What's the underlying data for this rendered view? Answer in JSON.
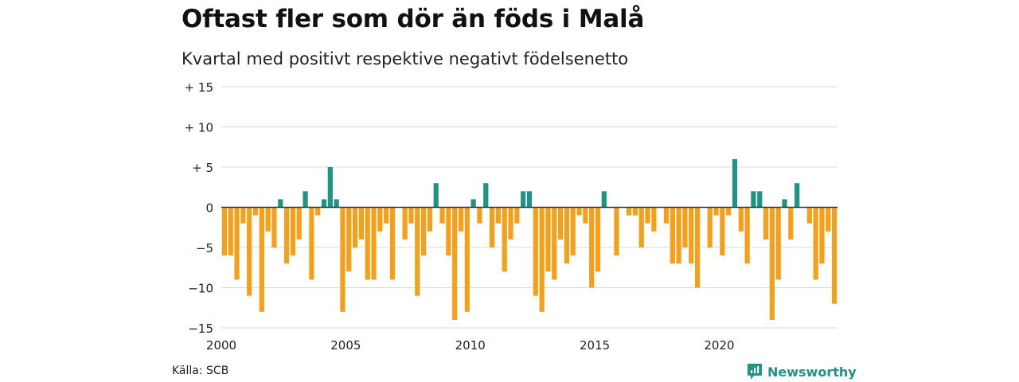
{
  "header": {
    "title": "Oftast fler som dör än föds i Malå",
    "subtitle": "Kvartal med positivt respektive negativt födelsenetto"
  },
  "footer": {
    "source": "Källa: SCB",
    "brand_name": "Newsworthy",
    "brand_icon": "newsworthy-logo-icon"
  },
  "colors": {
    "positive": "#1e9484",
    "negative": "#f5a01a",
    "brand": "#1e9484",
    "grid": "#d9d9d9",
    "zero_line": "#333333"
  },
  "chart_data": {
    "type": "bar",
    "title": "Oftast fler som dör än föds i Malå",
    "subtitle": "Kvartal med positivt respektive negativt födelsenetto",
    "x_ticks": [
      "2000",
      "2005",
      "2010",
      "2015",
      "2020"
    ],
    "y_ticks": [
      "+ 15",
      "+ 10",
      "+  5",
      "0",
      "−5",
      "−10",
      "−15"
    ],
    "y_tick_values": [
      15,
      10,
      5,
      0,
      -5,
      -10,
      -15
    ],
    "ylim": [
      -15,
      15
    ],
    "x_start_year": 2000,
    "periods_per_year": 4,
    "grid": true,
    "values": [
      -6,
      -6,
      -9,
      -2,
      -11,
      -1,
      -13,
      -3,
      -5,
      1,
      -7,
      -6,
      -4,
      2,
      -9,
      -1,
      1,
      5,
      1,
      -13,
      -8,
      -5,
      -4,
      -9,
      -9,
      -3,
      -2,
      -9,
      0,
      -4,
      -2,
      -11,
      -6,
      -3,
      3,
      -2,
      -6,
      -14,
      -3,
      -13,
      1,
      -2,
      3,
      -5,
      -2,
      -8,
      -4,
      -2,
      2,
      2,
      -11,
      -13,
      -8,
      -9,
      -4,
      -7,
      -6,
      -1,
      -2,
      -10,
      -8,
      2,
      0,
      -6,
      0,
      -1,
      -1,
      -5,
      -2,
      -3,
      0,
      -2,
      -7,
      -7,
      -5,
      -7,
      -10,
      0,
      -5,
      -1,
      -6,
      -1,
      6,
      -3,
      -7,
      2,
      2,
      -4,
      -14,
      -9,
      1,
      -4,
      3,
      0,
      -2,
      -9,
      -7,
      -3,
      -12
    ]
  }
}
